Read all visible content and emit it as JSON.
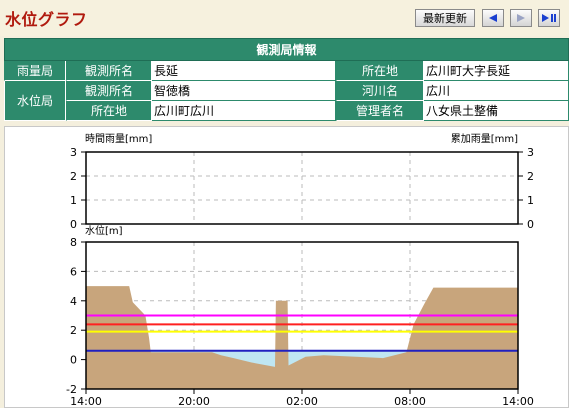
{
  "header": {
    "title": "水位グラフ",
    "update_label": "最新更新",
    "nav": [
      {
        "name": "prev-button",
        "icon": "triangle-left-icon"
      },
      {
        "name": "next-button",
        "icon": "triangle-right-icon"
      },
      {
        "name": "latest-button",
        "icon": "play-pause-icon"
      }
    ]
  },
  "info": {
    "title": "観測局情報",
    "rain": {
      "group": "雨量局",
      "name_label": "観測所名",
      "name": "長延",
      "loc_label": "所在地",
      "loc": "広川町大字長延"
    },
    "water": {
      "group": "水位局",
      "name_label": "観測所名",
      "name": "智徳橋",
      "river_label": "河川名",
      "river": "広川",
      "loc_label": "所在地",
      "loc": "広川町広川",
      "admin_label": "管理者名",
      "admin": "八女県土整備"
    }
  },
  "chart_data": [
    {
      "type": "bar",
      "ylabel_left": "時間雨量[mm]",
      "ylabel_right": "累加雨量[mm]",
      "ylim": [
        0,
        3
      ],
      "yticks": [
        0,
        1,
        2,
        3
      ],
      "values": [],
      "grid": true
    },
    {
      "type": "area",
      "ylabel": "水位[m]",
      "ylim": [
        -2,
        8
      ],
      "yticks": [
        -2,
        0,
        2,
        4,
        6,
        8
      ],
      "xticks": [
        "14:00",
        "20:00",
        "02:00",
        "08:00",
        "14:00"
      ],
      "x_hours": [
        0,
        6,
        12,
        18,
        24
      ],
      "grid": true,
      "colors": {
        "ground": "#c8a57c",
        "water": "#bfe6f2",
        "magenta": "#ff00ff",
        "red": "#ff2020",
        "yellow": "#ffff00",
        "blue": "#2020c0"
      },
      "thresholds": [
        {
          "color": "magenta",
          "value": 3.0
        },
        {
          "color": "red",
          "value": 2.4
        },
        {
          "color": "yellow",
          "value": 1.9
        },
        {
          "color": "blue",
          "value": 0.6
        }
      ],
      "water_level": [
        [
          0,
          0.6
        ],
        [
          24,
          0.6
        ]
      ],
      "ground_profile": [
        [
          0,
          5.0
        ],
        [
          2.4,
          5.0
        ],
        [
          2.6,
          3.9
        ],
        [
          3.3,
          3.0
        ],
        [
          3.5,
          1.5
        ],
        [
          3.6,
          0.5
        ],
        [
          7.0,
          0.5
        ],
        [
          7.5,
          0.3
        ],
        [
          8.2,
          0.1
        ],
        [
          9.2,
          -0.2
        ],
        [
          10.5,
          -0.5
        ],
        [
          10.55,
          4.0
        ],
        [
          11.2,
          4.0
        ],
        [
          11.25,
          -0.4
        ],
        [
          12.2,
          0.2
        ],
        [
          13.2,
          0.3
        ],
        [
          15.0,
          0.2
        ],
        [
          16.5,
          0.1
        ],
        [
          17.8,
          0.5
        ],
        [
          18.2,
          2.4
        ],
        [
          18.8,
          3.8
        ],
        [
          19.3,
          4.9
        ],
        [
          24,
          4.9
        ]
      ]
    }
  ]
}
